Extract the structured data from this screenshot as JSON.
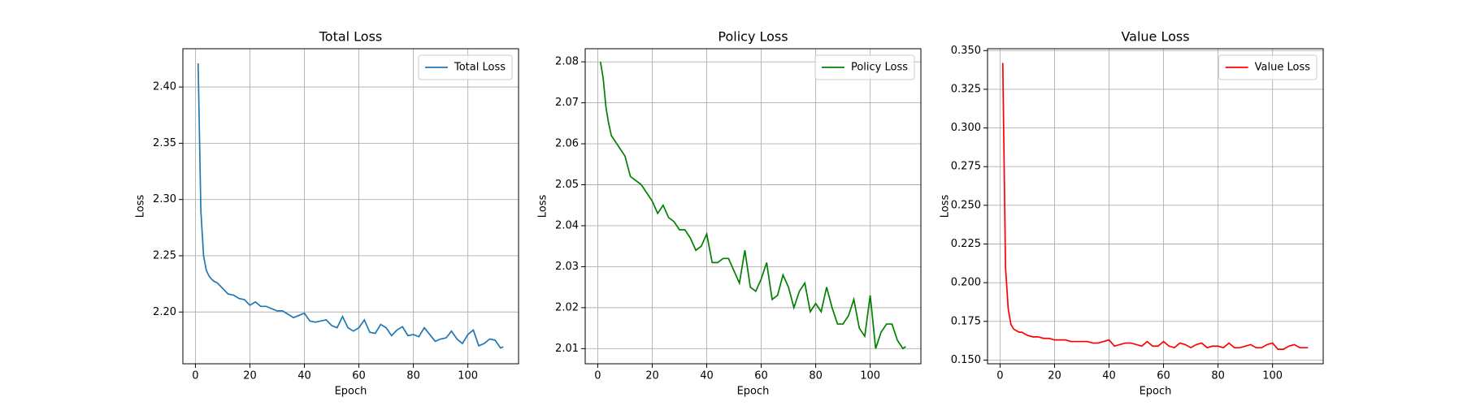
{
  "chart_data": [
    {
      "type": "line",
      "title": "Total Loss",
      "xlabel": "Epoch",
      "ylabel": "Loss",
      "x": [
        1,
        2,
        3,
        4,
        5,
        6,
        7,
        8,
        10,
        12,
        14,
        16,
        18,
        20,
        22,
        24,
        26,
        28,
        30,
        32,
        34,
        36,
        38,
        40,
        42,
        44,
        46,
        48,
        50,
        52,
        54,
        56,
        58,
        60,
        62,
        64,
        66,
        68,
        70,
        72,
        74,
        76,
        78,
        80,
        82,
        84,
        86,
        88,
        90,
        92,
        94,
        96,
        98,
        100,
        102,
        104,
        106,
        108,
        110,
        112,
        113
      ],
      "series": [
        {
          "name": "Total Loss",
          "color": "#1f77b4",
          "values": [
            2.421,
            2.29,
            2.25,
            2.237,
            2.232,
            2.229,
            2.227,
            2.226,
            2.221,
            2.216,
            2.215,
            2.212,
            2.211,
            2.206,
            2.209,
            2.205,
            2.205,
            2.203,
            2.201,
            2.201,
            2.198,
            2.195,
            2.197,
            2.199,
            2.192,
            2.191,
            2.192,
            2.193,
            2.188,
            2.186,
            2.196,
            2.186,
            2.183,
            2.186,
            2.193,
            2.182,
            2.181,
            2.189,
            2.186,
            2.179,
            2.184,
            2.187,
            2.179,
            2.18,
            2.178,
            2.186,
            2.18,
            2.174,
            2.176,
            2.177,
            2.183,
            2.176,
            2.172,
            2.18,
            2.184,
            2.17,
            2.172,
            2.176,
            2.175,
            2.168,
            2.169
          ]
        }
      ],
      "xlim": [
        -4.6,
        118.6
      ],
      "ylim": [
        2.154,
        2.434
      ],
      "xticks": [
        0,
        20,
        40,
        60,
        80,
        100
      ],
      "yticks": [
        {
          "value": 2.2,
          "label": "2.20"
        },
        2.25,
        {
          "value": 2.3,
          "label": "2.30"
        },
        2.35,
        {
          "value": 2.4,
          "label": "2.40"
        }
      ],
      "grid": true,
      "legend": "upper right"
    },
    {
      "type": "line",
      "title": "Policy Loss",
      "xlabel": "Epoch",
      "ylabel": "Loss",
      "x": [
        1,
        2,
        3,
        4,
        5,
        6,
        7,
        8,
        10,
        12,
        14,
        16,
        18,
        20,
        22,
        24,
        26,
        28,
        30,
        32,
        34,
        36,
        38,
        40,
        42,
        44,
        46,
        48,
        50,
        52,
        54,
        56,
        58,
        60,
        62,
        64,
        66,
        68,
        70,
        72,
        74,
        76,
        78,
        80,
        82,
        84,
        86,
        88,
        90,
        92,
        94,
        96,
        98,
        100,
        102,
        104,
        106,
        108,
        110,
        112,
        113
      ],
      "series": [
        {
          "name": "Policy Loss",
          "color": "#008000",
          "values": [
            2.08,
            2.076,
            2.069,
            2.065,
            2.062,
            2.061,
            2.06,
            2.059,
            2.057,
            2.052,
            2.051,
            2.05,
            2.048,
            2.046,
            2.043,
            2.045,
            2.042,
            2.041,
            2.039,
            2.039,
            2.037,
            2.034,
            2.035,
            2.038,
            2.031,
            2.031,
            2.032,
            2.032,
            2.029,
            2.026,
            2.034,
            2.025,
            2.024,
            2.027,
            2.031,
            2.022,
            2.023,
            2.028,
            2.025,
            2.02,
            2.024,
            2.026,
            2.019,
            2.021,
            2.019,
            2.025,
            2.02,
            2.016,
            2.016,
            2.018,
            2.022,
            2.015,
            2.013,
            2.023,
            2.01,
            2.014,
            2.016,
            2.016,
            2.012,
            2.01,
            2.0105
          ]
        }
      ],
      "xlim": [
        -4.6,
        118.6
      ],
      "ylim": [
        2.0063,
        2.0832
      ],
      "xticks": [
        0,
        20,
        40,
        60,
        80,
        100
      ],
      "yticks": [
        2.01,
        2.02,
        2.03,
        2.04,
        2.05,
        2.06,
        2.07,
        2.08
      ],
      "grid": true,
      "legend": "upper right"
    },
    {
      "type": "line",
      "title": "Value Loss",
      "xlabel": "Epoch",
      "ylabel": "Loss",
      "x": [
        1,
        2,
        3,
        4,
        5,
        6,
        7,
        8,
        10,
        12,
        14,
        16,
        18,
        20,
        22,
        24,
        26,
        28,
        30,
        32,
        34,
        36,
        38,
        40,
        42,
        44,
        46,
        48,
        50,
        52,
        54,
        56,
        58,
        60,
        62,
        64,
        66,
        68,
        70,
        72,
        74,
        76,
        78,
        80,
        82,
        84,
        86,
        88,
        90,
        92,
        94,
        96,
        98,
        100,
        102,
        104,
        106,
        108,
        110,
        112,
        113
      ],
      "series": [
        {
          "name": "Value Loss",
          "color": "#ff0000",
          "values": [
            0.342,
            0.21,
            0.183,
            0.173,
            0.17,
            0.169,
            0.168,
            0.168,
            0.166,
            0.165,
            0.165,
            0.164,
            0.164,
            0.163,
            0.163,
            0.163,
            0.162,
            0.162,
            0.162,
            0.162,
            0.161,
            0.161,
            0.162,
            0.163,
            0.159,
            0.16,
            0.161,
            0.161,
            0.16,
            0.159,
            0.162,
            0.159,
            0.159,
            0.162,
            0.159,
            0.158,
            0.161,
            0.16,
            0.158,
            0.16,
            0.161,
            0.158,
            0.159,
            0.159,
            0.158,
            0.161,
            0.158,
            0.158,
            0.159,
            0.16,
            0.158,
            0.158,
            0.16,
            0.161,
            0.157,
            0.157,
            0.159,
            0.16,
            0.158,
            0.158,
            0.158
          ]
        }
      ],
      "xlim": [
        -4.6,
        118.6
      ],
      "ylim": [
        0.1476,
        0.3512
      ],
      "xticks": [
        0,
        20,
        40,
        60,
        80,
        100
      ],
      "yticks": [
        {
          "value": 0.15,
          "label": "0.150"
        },
        0.175,
        {
          "value": 0.2,
          "label": "0.200"
        },
        0.225,
        {
          "value": 0.25,
          "label": "0.250"
        },
        0.275,
        {
          "value": 0.3,
          "label": "0.300"
        },
        0.325,
        {
          "value": 0.35,
          "label": "0.350"
        }
      ],
      "grid": true,
      "legend": "upper right"
    }
  ]
}
